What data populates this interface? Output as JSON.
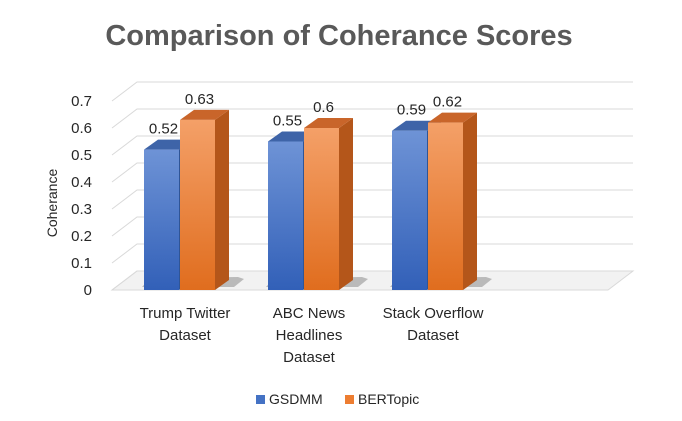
{
  "chart_data": {
    "type": "bar",
    "title": "Comparison of Coherance Scores",
    "xlabel": "",
    "ylabel": "Coherance",
    "ylim": [
      0,
      0.7
    ],
    "yticks": [
      "0",
      "0.1",
      "0.2",
      "0.3",
      "0.4",
      "0.5",
      "0.6",
      "0.7"
    ],
    "categories": [
      [
        "Trump Twitter",
        "Dataset"
      ],
      [
        "ABC News",
        "Headlines",
        "Dataset"
      ],
      [
        "Stack Overflow",
        "Dataset"
      ]
    ],
    "series": [
      {
        "name": "GSDMM",
        "values": [
          0.52,
          0.55,
          0.59
        ],
        "labels": [
          "0.52",
          "0.55",
          "0.59"
        ],
        "color": "#4472C4"
      },
      {
        "name": "BERTopic",
        "values": [
          0.63,
          0.6,
          0.62
        ],
        "labels": [
          "0.63",
          "0.6",
          "0.62"
        ],
        "color": "#ED7D31"
      }
    ],
    "grid": true,
    "legend_position": "bottom",
    "style": "3d-column"
  }
}
